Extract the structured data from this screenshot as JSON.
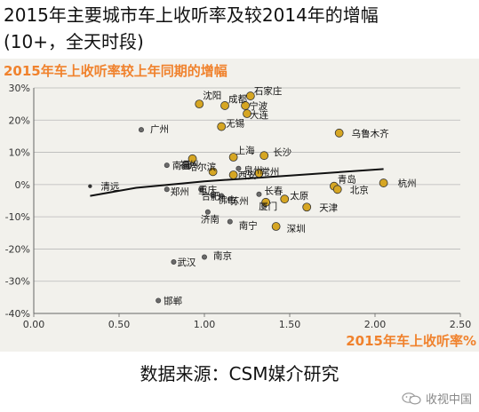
{
  "page": {
    "title_line1": "2015年主要城市车上收听率及较2014年的增幅",
    "title_line2": "(10+，全天时段)",
    "source": "数据来源：CSM媒介研究",
    "watermark": "收视中国",
    "watermark_icon": "wechat-icon"
  },
  "chart_data": {
    "type": "scatter",
    "title": "2015年车上收听率较上年同期的增幅",
    "xlabel": "2015年车上收听率%",
    "ylabel": "",
    "xlim": [
      0,
      2.5
    ],
    "ylim": [
      -40,
      30
    ],
    "x_ticks": [
      "0.00",
      "0.50",
      "1.00",
      "1.50",
      "2.00",
      "2.50"
    ],
    "y_ticks": [
      "30%",
      "20%",
      "10%",
      "0%",
      "-10%",
      "-20%",
      "-30%",
      "-40%"
    ],
    "grid": "horizontal",
    "trendline": [
      [
        0.33,
        -3.5
      ],
      [
        0.6,
        -1.0
      ],
      [
        1.0,
        1.0
      ],
      [
        1.5,
        2.8
      ],
      [
        2.05,
        4.8
      ]
    ],
    "colors": {
      "title_orange": "#f0822d",
      "point_gold": "#d6a623",
      "point_gray": "#6b6b6b",
      "trendline": "#111111",
      "background": "#f2f1ec"
    },
    "points": [
      {
        "name": "石家庄",
        "x": 1.27,
        "y": 27.5,
        "size": "large",
        "color": "gold"
      },
      {
        "name": "沈阳",
        "x": 0.97,
        "y": 25,
        "size": "large",
        "color": "gold"
      },
      {
        "name": "成都",
        "x": 1.12,
        "y": 24.5,
        "size": "large",
        "color": "gold"
      },
      {
        "name": "宁波",
        "x": 1.24,
        "y": 24.5,
        "size": "large",
        "color": "gold"
      },
      {
        "name": "大连",
        "x": 1.25,
        "y": 22,
        "size": "large",
        "color": "gold"
      },
      {
        "name": "无锡",
        "x": 1.1,
        "y": 18,
        "size": "large",
        "color": "gold"
      },
      {
        "name": "广州",
        "x": 0.63,
        "y": 17,
        "size": "small",
        "color": "gray"
      },
      {
        "name": "乌鲁木齐",
        "x": 1.79,
        "y": 16,
        "size": "large",
        "color": "gold"
      },
      {
        "name": "上海",
        "x": 1.17,
        "y": 8.5,
        "size": "large",
        "color": "gold"
      },
      {
        "name": "长沙",
        "x": 1.35,
        "y": 9,
        "size": "large",
        "color": "gold"
      },
      {
        "name": "福州",
        "x": 0.93,
        "y": 8,
        "size": "large",
        "color": "gold"
      },
      {
        "name": "南昌",
        "x": 0.78,
        "y": 6,
        "size": "small",
        "color": "gray"
      },
      {
        "name": "泉州",
        "x": 1.2,
        "y": 5,
        "size": "small",
        "color": "gray"
      },
      {
        "name": "哈尔滨",
        "x": 1.05,
        "y": 4,
        "size": "large",
        "color": "gold"
      },
      {
        "name": "西安",
        "x": 1.17,
        "y": 3,
        "size": "large",
        "color": "gold"
      },
      {
        "name": "常州",
        "x": 1.32,
        "y": 3.5,
        "size": "large",
        "color": "gold"
      },
      {
        "name": "清远",
        "x": 0.33,
        "y": -0.5,
        "size": "tiny",
        "color": "gray"
      },
      {
        "name": "杭州",
        "x": 2.05,
        "y": 0.5,
        "size": "large",
        "color": "gold"
      },
      {
        "name": "青岛",
        "x": 1.76,
        "y": -0.5,
        "size": "large",
        "color": "gold"
      },
      {
        "name": "北京",
        "x": 1.78,
        "y": -1.5,
        "size": "large",
        "color": "gold"
      },
      {
        "name": "郑州",
        "x": 0.78,
        "y": -1.5,
        "size": "small",
        "color": "gray"
      },
      {
        "name": "重庆",
        "x": 0.98,
        "y": -1.5,
        "size": "small",
        "color": "gray"
      },
      {
        "name": "合肥",
        "x": 1.05,
        "y": -3.5,
        "size": "small",
        "color": "gray"
      },
      {
        "name": "佛山",
        "x": 1.1,
        "y": -3.5,
        "size": "small",
        "color": "gray"
      },
      {
        "name": "长春",
        "x": 1.32,
        "y": -3,
        "size": "small",
        "color": "gray"
      },
      {
        "name": "太原",
        "x": 1.47,
        "y": -4.5,
        "size": "large",
        "color": "gold"
      },
      {
        "name": "苏州",
        "x": 1.15,
        "y": -4.5,
        "size": "small",
        "color": "gray"
      },
      {
        "name": "厦门",
        "x": 1.36,
        "y": -5.5,
        "size": "large",
        "color": "gold"
      },
      {
        "name": "天津",
        "x": 1.6,
        "y": -7,
        "size": "large",
        "color": "gold"
      },
      {
        "name": "济南",
        "x": 1.02,
        "y": -8.5,
        "size": "small",
        "color": "gray"
      },
      {
        "name": "南宁",
        "x": 1.15,
        "y": -11.5,
        "size": "small",
        "color": "gray"
      },
      {
        "name": "深圳",
        "x": 1.42,
        "y": -13,
        "size": "large",
        "color": "gold"
      },
      {
        "name": "南京",
        "x": 1.0,
        "y": -22.5,
        "size": "small",
        "color": "gray"
      },
      {
        "name": "武汉",
        "x": 0.82,
        "y": -24,
        "size": "small",
        "color": "gray"
      },
      {
        "name": "邯郸",
        "x": 0.73,
        "y": -36,
        "size": "small",
        "color": "gray"
      }
    ]
  }
}
